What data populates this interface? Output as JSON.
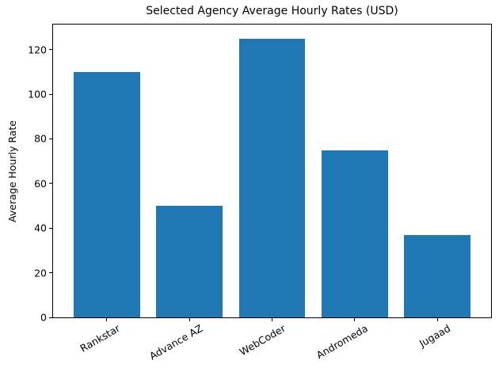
{
  "figure": {
    "background": "#ffffff",
    "text_color": "#000000"
  },
  "chart_data": {
    "type": "bar",
    "title": "Selected Agency Average Hourly Rates (USD)",
    "ylabel": "Average Hourly Rate",
    "xlabel": "",
    "categories": [
      "Rankstar",
      "Advance AZ",
      "WebCoder",
      "Andromeda",
      "Jugaad"
    ],
    "values": [
      110,
      50,
      125,
      75,
      37
    ],
    "yticks": [
      0,
      20,
      40,
      60,
      80,
      100,
      120
    ],
    "ylim": [
      0,
      131.25
    ],
    "xlim": [
      -0.65,
      4.65
    ],
    "bar_width": 0.8,
    "bar_color": "#1f77b4",
    "axis_color": "#000000",
    "xtick_rotation_deg": 30,
    "grid": false,
    "legend": "none"
  }
}
